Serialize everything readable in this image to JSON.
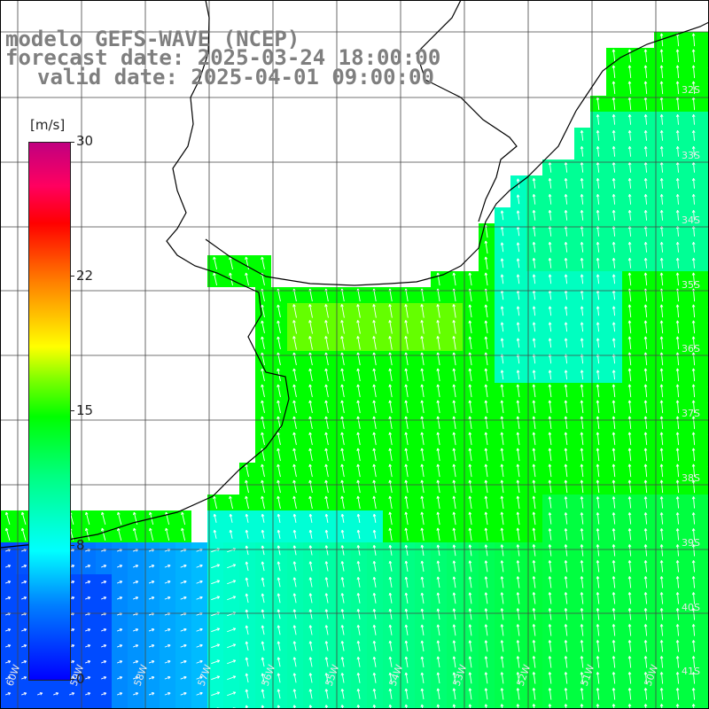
{
  "title": {
    "line1": "modelo GEFS-WAVE (NCEP)",
    "line2": "forecast date: 2025-03-24 18:00:00",
    "line3": "valid date: 2025-04-01 09:00:00"
  },
  "colorbar": {
    "unit": "[m/s]",
    "min": 0,
    "max": 30,
    "ticks": [
      "30",
      "22",
      "15",
      "8",
      "0"
    ],
    "tick_values": [
      30,
      22,
      15,
      8,
      0
    ]
  },
  "lat_labels": [
    "32S",
    "33S",
    "34S",
    "35S",
    "36S",
    "37S",
    "38S",
    "39S",
    "40S",
    "41S"
  ],
  "lon_labels": [
    "60W",
    "59W",
    "58W",
    "57W",
    "56W",
    "55W",
    "54W",
    "53W",
    "52W",
    "51W",
    "50W"
  ],
  "colors": {
    "land": "#ffffff",
    "grid": "#444444",
    "coast": "#000000",
    "arrow": "#ffffff"
  }
}
